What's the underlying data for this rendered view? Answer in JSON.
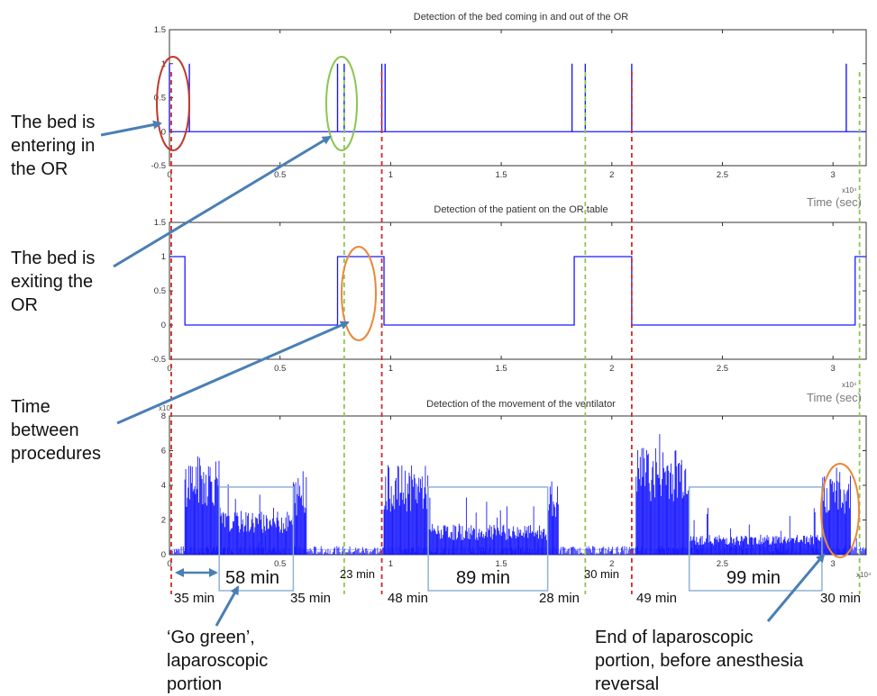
{
  "chart_data": [
    {
      "type": "line",
      "title": "Detection of the bed coming in and out of the OR",
      "xlabel": "Time (sec)",
      "x_multiplier": "x10⁴",
      "xlim": [
        0,
        3.15
      ],
      "ylim": [
        -0.5,
        1.5
      ],
      "xticks": [
        "0",
        "0.5",
        "1",
        "1.5",
        "2",
        "2.5",
        "3"
      ],
      "yticks": [
        "1.5",
        "1",
        "0.5",
        "0",
        "-0.5"
      ],
      "series": [
        {
          "values_desc": "pulses",
          "pulses": [
            0.0,
            0.09,
            0.76,
            0.79,
            0.96,
            0.975,
            1.82,
            1.88,
            2.09,
            3.06
          ]
        }
      ]
    },
    {
      "type": "line",
      "title": "Detection of the patient on the OR table",
      "xlabel": "Time (sec)",
      "x_multiplier": "x10⁴",
      "xlim": [
        0,
        3.15
      ],
      "ylim": [
        -0.5,
        1.5
      ],
      "xticks": [
        "0",
        "0.5",
        "1",
        "1.5",
        "2",
        "2.5",
        "3"
      ],
      "yticks": [
        "1.5",
        "1",
        "0.5",
        "0",
        "-0.5"
      ],
      "series": [
        {
          "segments": [
            [
              0.0,
              0.07,
              1
            ],
            [
              0.07,
              0.76,
              0
            ],
            [
              0.76,
              0.97,
              1
            ],
            [
              0.97,
              1.83,
              0
            ],
            [
              1.83,
              2.09,
              1
            ],
            [
              2.09,
              3.1,
              0
            ],
            [
              3.1,
              3.15,
              1
            ]
          ]
        }
      ]
    },
    {
      "type": "area",
      "title": "Detection of the movement of the ventilator",
      "y_multiplier": "x10⁷",
      "x_multiplier": "x10⁴",
      "xlim": [
        0,
        3.15
      ],
      "ylim": [
        0,
        8
      ],
      "xticks": [
        "0",
        "0.5",
        "1",
        "1.5",
        "2",
        "2.5",
        "3"
      ],
      "yticks": [
        "8",
        "6",
        "4",
        "2",
        "0"
      ],
      "active_segments": [
        {
          "x": [
            0.07,
            0.225
          ],
          "level": 5.0
        },
        {
          "x": [
            0.225,
            0.56
          ],
          "level": 2.2
        },
        {
          "x": [
            0.56,
            0.62
          ],
          "level": 4.0
        },
        {
          "x": [
            0.97,
            1.17
          ],
          "level": 4.5
        },
        {
          "x": [
            1.17,
            1.71
          ],
          "level": 1.5
        },
        {
          "x": [
            1.71,
            1.76
          ],
          "level": 3.5
        },
        {
          "x": [
            2.11,
            2.35
          ],
          "level": 5.5
        },
        {
          "x": [
            2.35,
            2.95
          ],
          "level": 1.0
        },
        {
          "x": [
            2.95,
            3.08
          ],
          "level": 4.2
        }
      ],
      "boxes": [
        {
          "x": [
            0.225,
            0.56
          ],
          "y": [
            0,
            3.9
          ]
        },
        {
          "x": [
            1.17,
            1.71
          ],
          "y": [
            0,
            3.9
          ]
        },
        {
          "x": [
            2.35,
            2.95
          ],
          "y": [
            0,
            3.9
          ]
        }
      ]
    }
  ],
  "event_lines": {
    "red": [
      0.0,
      0.96,
      2.09
    ],
    "green": [
      0.79,
      1.88,
      3.12
    ]
  },
  "colors": {
    "signal": "#1a1aff",
    "red_line": "#d02a2a",
    "green_line": "#8ac650",
    "arrow": "#4a7fb5",
    "box": "#8fb2d6",
    "ellipse_red": "#c0392b",
    "ellipse_green": "#8ac650",
    "ellipse_orange": "#e8893a"
  },
  "annotations": {
    "bed_entering": [
      "The bed is",
      "entering in",
      "the OR"
    ],
    "bed_exiting": [
      "The bed is",
      "exiting the",
      "OR"
    ],
    "time_between": [
      "Time",
      "between",
      "procedures"
    ],
    "go_green": [
      "‘Go green’,",
      "laparoscopic",
      "portion"
    ],
    "end_lap": [
      "End of laparoscopic",
      "portion, before anesthesia",
      "reversal"
    ]
  },
  "durations": {
    "d1": "35 min",
    "d2": "58 min",
    "d3": "35 min",
    "d4": "23 min",
    "d5": "48 min",
    "d6": "89 min",
    "d7": "28 min",
    "d8": "30 min",
    "d9": "49 min",
    "d10": "99 min",
    "d11": "30 min"
  }
}
